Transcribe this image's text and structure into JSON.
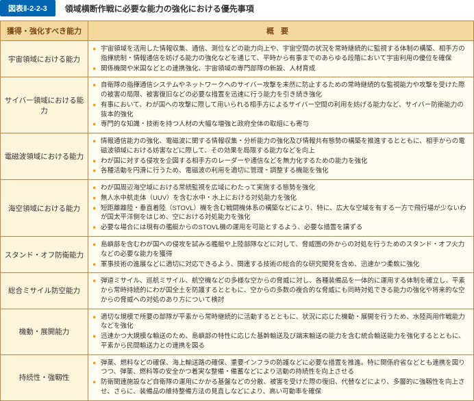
{
  "header": {
    "label": "図表Ⅱ-2-2-3",
    "title": "領域横断作戦に必要な能力の強化における優先事項"
  },
  "columns": {
    "col1": "獲得・強化すべき能力",
    "col2": "概要"
  },
  "rows": [
    {
      "label": "宇宙領域における能力",
      "items": [
        "宇宙領域を活用した情報収集、通信、測位などの能力向上や、宇宙空間の状況を常時継続的に監視する体制の構築、相手方の指揮統制・情報通信を妨げる能力の強化などを通じて、平時から有事までのあらゆる段階において宇宙利用の優位を確保",
        "関係機関や米国などとの連携強化、宇宙領域の専門部隊の新設、人材育成"
      ]
    },
    {
      "label": "サイバー領域における能力",
      "items": [
        "自衛隊の指揮通信システムやネットワークへのサイバー攻撃を未然に防止するための常時継続的な監視能力や攻撃を受けた際の被害の局限、被害復旧などの必要な措置を迅速に行う能力を引き続き強化",
        "有事において、わが国への攻撃に際して用いられる相手方によるサイバー空間の利用を妨げる能力など、サイバー防衛能力の抜本的強化",
        "専門的な知識・技術を持つ人材の大幅な増強と政府全体の取組にも寄与"
      ]
    },
    {
      "label": "電磁波領域における能力",
      "items": [
        "情報通信能力の強化、電磁波に関する情報収集・分析能力の強化及び情報共有態勢の構築を推進するとともに、相手からの電磁波領域における妨害などに際して、その効果を局限する能力などを向上",
        "わが国に対する侵攻を企図する相手方のレーダーや通信などを無力化するための能力を強化",
        "各種活動を円滑に行うため、電磁波の利用を適切に管理・調整する機能を強化"
      ]
    },
    {
      "label": "海空領域における能力",
      "items": [
        "わが国周辺海空域における常続監視を広域にわたって実施する態勢を強化",
        "無人水中航走体（UUV）を含む水中・水上における対処能力を強化",
        "短距離離陸・垂直着陸（STOVL）機を含む戦闘機体系の構築などにより、特に、広大な空域を有する一方で飛行場が少ないわが国太平洋側をはじめ、空における対処能力を強化",
        "必要な場合には現有の艦艇からのSTOVL機の運用を可能とするよう、必要な措置を講ずる"
      ]
    },
    {
      "label": "スタンド・オフ防衛能力",
      "items": [
        "島嶼部を含むわが国への侵攻を試みる艦艇や上陸部隊などに対して、脅威圏の外からの対処を行うためのスタンド・オフ火力などの必要な能力を獲得",
        "軍事技術の進展などに適切に対応できるよう、関連する技術の総合的な研究開発を含め、迅速かつ柔軟に強化"
      ]
    },
    {
      "label": "総合ミサイル防空能力",
      "items": [
        "弾道ミサイル、巡航ミサイル、航空機などの多様な空からの脅威に対し、各種装備品を一体的に運用する体制を確立し、平素から常時持続的にわが国全土を防護するとともに、空からの多数の複合的な脅威にも同時対処できる能力の強化や将来的な空からの脅威への対処のあり方について検討"
      ]
    },
    {
      "label": "機動・展開能力",
      "items": [
        "適切な規模で所要の部隊が平素から常時継続的に活動するとともに、状況に応じた機動・展開を行うため、水陸両用作戦能力などを強化",
        "迅速かつ大規模な輸送のため、島嶼部の特性に応じた基幹輸送及び端末輸送の能力を含む統合輸送能力を強化するとともに、平素から民間輸送力との連携を図る"
      ]
    },
    {
      "label": "持続性・強靱性",
      "items": [
        "弾薬、燃料などの確保、海上輸送路の確保、重要インフラの防護などに必要な措置を推進。特に関係府省などとも連携を図りつつ、弾薬、燃料等の安全かつ着実な整備・備蓄などにより活動の持続性を向上させる",
        "防衛関連施設など自衛隊の運用にかかる基盤などの分散、被害を受けた際の復旧、代替などにより、多層的に強靱性を向上させ、さらに、装備品の維持整備方法の見直しなどにより、高い可動率を確保"
      ]
    }
  ]
}
